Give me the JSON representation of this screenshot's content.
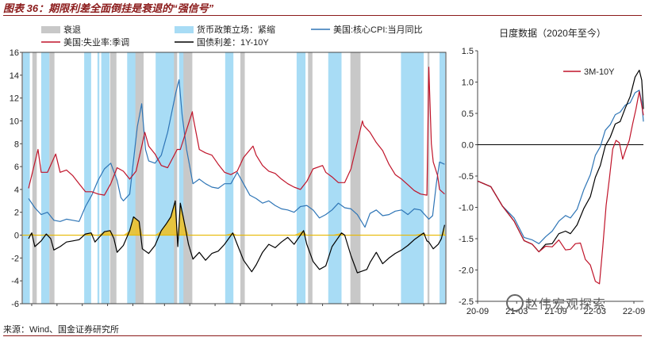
{
  "header": {
    "title": "图表 36：期限利差全面倒挂是衰退的“强信号”",
    "source": "来源：Wind、国金证券研究所",
    "watermark": "赵伟宏观探索",
    "watermark_icon": "wechat-icon"
  },
  "colors": {
    "recession": "#c8c8c8",
    "tightening": "#a8dcf5",
    "core_cpi": "#2e75b6",
    "unemployment": "#c0142a",
    "spread": "#000000",
    "zero_line": "#e6b800",
    "positive_area": "#f0c020"
  },
  "chart_data": [
    {
      "type": "line",
      "legend_position": "top",
      "title": "",
      "xlabel": "",
      "ylabel": "",
      "ylim": [
        -6,
        16
      ],
      "xlim": [
        1956.0,
        2023.0
      ],
      "x_ticks": [
        "1957",
        "1961",
        "1965",
        "1969",
        "1973",
        "1978",
        "1982",
        "1986",
        "1990",
        "1995",
        "1999",
        "2003",
        "2007",
        "2011",
        "2015",
        "2019"
      ],
      "y_ticks": [
        "16",
        "14",
        "12",
        "10",
        "8",
        "6",
        "4",
        "2",
        "0",
        "-2",
        "-4",
        "-6"
      ],
      "legend": {
        "recession": "衰退",
        "tightening": "货币政策立场：紧缩",
        "core_cpi": "美国:核心CPI:当月同比",
        "unemployment": "美国:失业率:季调",
        "spread": "国债利差：1Y-10Y"
      },
      "recession_periods": [
        [
          1957.6,
          1958.3
        ],
        [
          1960.3,
          1961.1
        ],
        [
          1969.9,
          1970.9
        ],
        [
          1973.9,
          1975.2
        ],
        [
          1980.0,
          1980.5
        ],
        [
          1981.5,
          1982.9
        ],
        [
          1990.5,
          1991.2
        ],
        [
          2001.2,
          2001.9
        ],
        [
          2007.9,
          2009.5
        ],
        [
          2020.1,
          2020.4
        ]
      ],
      "tightening_periods": [
        [
          1956.1,
          1957.2
        ],
        [
          1959.0,
          1960.3
        ],
        [
          1965.8,
          1966.9
        ],
        [
          1967.9,
          1968.2
        ],
        [
          1968.5,
          1969.8
        ],
        [
          1970.1,
          1970.3
        ],
        [
          1972.6,
          1974.6
        ],
        [
          1977.1,
          1980.5
        ],
        [
          1980.8,
          1981.9
        ],
        [
          1988.1,
          1989.4
        ],
        [
          1999.4,
          2000.8
        ],
        [
          2004.4,
          2006.5
        ],
        [
          2015.9,
          2019.5
        ],
        [
          2022.0,
          2022.9
        ]
      ],
      "series": [
        {
          "name": "美国:核心CPI:当月同比",
          "x": [
            1957,
            1958,
            1959,
            1960,
            1961,
            1962,
            1963,
            1964,
            1965,
            1966,
            1967,
            1968,
            1969,
            1970,
            1971,
            1971.6,
            1972,
            1973,
            1974.2,
            1974.9,
            1975.5,
            1976,
            1977,
            1978,
            1979,
            1980.3,
            1980.8,
            1981.3,
            1982,
            1983,
            1984,
            1985,
            1986,
            1987,
            1988,
            1989,
            1990,
            1991,
            1992,
            1993,
            1994,
            1995,
            1996,
            1997,
            1998,
            1999,
            2000,
            2001,
            2002,
            2003,
            2004,
            2005,
            2006,
            2007,
            2008,
            2009,
            2010.2,
            2011,
            2012,
            2013,
            2014,
            2015,
            2016,
            2017,
            2018,
            2019,
            2020.3,
            2020.9,
            2021.5,
            2022,
            2022.8
          ],
          "values": [
            3.2,
            2.4,
            1.8,
            2.0,
            1.3,
            1.2,
            1.4,
            1.3,
            1.2,
            2.5,
            3.5,
            4.8,
            5.8,
            6.3,
            4.8,
            3.3,
            3.0,
            3.6,
            9.5,
            11.5,
            7.5,
            6.5,
            6.3,
            7.0,
            9.0,
            12.5,
            13.6,
            10.5,
            7.5,
            4.5,
            4.9,
            4.5,
            4.2,
            4.1,
            4.5,
            4.5,
            5.5,
            4.5,
            3.5,
            3.2,
            2.8,
            3.0,
            2.6,
            2.3,
            2.2,
            2.0,
            2.5,
            2.6,
            2.2,
            1.5,
            1.8,
            2.2,
            2.8,
            2.4,
            2.3,
            1.8,
            0.7,
            1.9,
            2.2,
            1.7,
            1.8,
            2.1,
            2.2,
            1.8,
            2.3,
            2.2,
            1.4,
            1.7,
            4.5,
            6.4,
            6.2
          ]
        },
        {
          "name": "美国:失业率:季调",
          "x": [
            1957,
            1958.5,
            1959,
            1960,
            1961.3,
            1962,
            1963,
            1964,
            1965,
            1966,
            1967,
            1968,
            1969,
            1970,
            1971,
            1972,
            1973,
            1974,
            1975.4,
            1976,
            1977,
            1978,
            1979,
            1980.5,
            1981,
            1982.9,
            1983,
            1984,
            1985,
            1986,
            1987,
            1988,
            1989,
            1990,
            1991,
            1992.5,
            1993,
            1994,
            1995,
            1996,
            1997,
            1998,
            1999,
            2000,
            2001,
            2002,
            2003.5,
            2004,
            2005,
            2006,
            2007,
            2008,
            2009.8,
            2010,
            2011,
            2012,
            2013,
            2014,
            2015,
            2016,
            2017,
            2018,
            2019,
            2020.0,
            2020.3,
            2020.7,
            2021,
            2021.7,
            2022,
            2022.8
          ],
          "values": [
            4.1,
            7.5,
            5.5,
            5.5,
            7.1,
            5.5,
            5.7,
            5.2,
            4.5,
            3.8,
            3.8,
            3.6,
            3.5,
            4.5,
            5.9,
            5.6,
            4.9,
            5.6,
            9.0,
            7.8,
            7.1,
            6.1,
            5.9,
            7.5,
            7.5,
            10.8,
            10.4,
            7.5,
            7.2,
            7.0,
            6.2,
            5.5,
            5.3,
            5.6,
            6.8,
            7.8,
            7.0,
            6.1,
            5.6,
            5.4,
            4.9,
            4.5,
            4.2,
            4.0,
            4.7,
            5.8,
            6.1,
            5.5,
            5.1,
            4.6,
            4.6,
            5.8,
            10.0,
            9.6,
            9.0,
            8.1,
            7.4,
            6.2,
            5.3,
            4.9,
            4.4,
            3.9,
            3.6,
            3.5,
            14.7,
            8.0,
            6.4,
            5.2,
            4.0,
            3.6
          ]
        },
        {
          "name": "国债利差：1Y-10Y",
          "x": [
            1957,
            1957.5,
            1958,
            1959,
            1959.8,
            1960.5,
            1961,
            1962,
            1963,
            1964,
            1965,
            1966,
            1966.9,
            1967.5,
            1968,
            1969,
            1969.9,
            1970.5,
            1971,
            1972,
            1973,
            1973.6,
            1974.5,
            1975,
            1976,
            1977,
            1978,
            1978.8,
            1979.5,
            1980.2,
            1980.6,
            1981.0,
            1981.5,
            1982.3,
            1983,
            1984,
            1985,
            1986,
            1987,
            1988,
            1989.3,
            1990,
            1991,
            1992.3,
            1993,
            1994,
            1995,
            1996,
            1997,
            1998,
            1999,
            2000.5,
            2001,
            2002,
            2003,
            2004,
            2005,
            2006.5,
            2007,
            2008,
            2009,
            2010.5,
            2011,
            2012,
            2013,
            2014,
            2015,
            2016,
            2017,
            2018,
            2019.5,
            2020,
            2020.3,
            2021,
            2021.8,
            2022.3,
            2022.8
          ],
          "values": [
            -0.3,
            0.2,
            -1.0,
            -0.5,
            0.1,
            -0.3,
            -1.3,
            -1.0,
            -0.6,
            -0.5,
            -0.4,
            0.1,
            0.2,
            -0.6,
            -0.3,
            0.3,
            0.4,
            -0.3,
            -1.5,
            -0.9,
            0.4,
            1.6,
            1.2,
            -1.2,
            -1.6,
            -0.9,
            0.4,
            1.0,
            1.6,
            3.0,
            -1.0,
            2.8,
            1.5,
            -0.8,
            -2.1,
            -1.5,
            -2.2,
            -1.6,
            -1.4,
            -0.8,
            0.2,
            -0.8,
            -2.2,
            -3.2,
            -2.6,
            -1.5,
            -0.8,
            -1.1,
            -0.6,
            -0.2,
            -0.8,
            0.4,
            -0.8,
            -2.3,
            -3.0,
            -2.7,
            -1.0,
            0.2,
            0.0,
            -1.8,
            -3.3,
            -3.0,
            -2.4,
            -1.5,
            -2.5,
            -2.0,
            -1.6,
            -1.3,
            -0.9,
            -0.4,
            0.2,
            -0.5,
            -0.6,
            -1.2,
            -0.8,
            -0.3,
            0.9
          ]
        }
      ]
    },
    {
      "type": "line",
      "title": "日度数据（2020年至今）",
      "xlabel": "",
      "ylabel": "",
      "ylim": [
        -2.5,
        1.5
      ],
      "legend_position": "top-right",
      "x_ticks": [
        "20-09",
        "21-03",
        "21-09",
        "22-03",
        "22-09"
      ],
      "y_ticks": [
        "1.5",
        "1.0",
        "0.5",
        "0.0",
        "-0.5",
        "-1.0",
        "-1.5",
        "-2.0",
        "-2.5"
      ],
      "legend": {
        "red_series": "3M-10Y"
      },
      "series": [
        {
          "name": "3M-10Y",
          "x": [
            0,
            0.08,
            0.15,
            0.22,
            0.28,
            0.33,
            0.37,
            0.41,
            0.45,
            0.49,
            0.53,
            0.56,
            0.59,
            0.62,
            0.65,
            0.68,
            0.71,
            0.735,
            0.755,
            0.775,
            0.795,
            0.815,
            0.835,
            0.855,
            0.875,
            0.895,
            0.915,
            0.935,
            0.955,
            0.975,
            1.0
          ],
          "values": [
            -0.55,
            -0.7,
            -0.95,
            -1.25,
            -1.5,
            -1.62,
            -1.68,
            -1.65,
            -1.6,
            -1.55,
            -1.65,
            -1.7,
            -1.55,
            -1.6,
            -1.8,
            -1.95,
            -2.15,
            -2.25,
            -1.6,
            -1.0,
            -0.5,
            -0.1,
            0.1,
            0.0,
            -0.2,
            -0.1,
            0.1,
            0.3,
            0.6,
            0.82,
            0.5
          ]
        },
        {
          "name": "black",
          "x": [
            0,
            0.08,
            0.15,
            0.22,
            0.28,
            0.33,
            0.37,
            0.41,
            0.45,
            0.49,
            0.53,
            0.56,
            0.6,
            0.64,
            0.68,
            0.71,
            0.74,
            0.77,
            0.8,
            0.83,
            0.86,
            0.89,
            0.92,
            0.95,
            0.975,
            0.99,
            1.0
          ],
          "values": [
            -0.55,
            -0.7,
            -0.95,
            -1.25,
            -1.5,
            -1.62,
            -1.68,
            -1.62,
            -1.55,
            -1.45,
            -1.35,
            -1.45,
            -1.25,
            -1.05,
            -0.8,
            -0.55,
            -0.3,
            -0.05,
            0.15,
            0.3,
            0.4,
            0.55,
            0.8,
            1.05,
            1.22,
            1.0,
            0.6
          ]
        },
        {
          "name": "blue",
          "x": [
            0,
            0.08,
            0.15,
            0.22,
            0.28,
            0.33,
            0.37,
            0.41,
            0.45,
            0.49,
            0.53,
            0.56,
            0.6,
            0.64,
            0.68,
            0.71,
            0.74,
            0.77,
            0.8,
            0.83,
            0.86,
            0.89,
            0.92,
            0.95,
            0.975,
            0.99,
            1.0
          ],
          "values": [
            -0.55,
            -0.7,
            -0.95,
            -1.2,
            -1.45,
            -1.55,
            -1.55,
            -1.5,
            -1.35,
            -1.25,
            -1.1,
            -1.2,
            -1.0,
            -0.75,
            -0.45,
            -0.2,
            0.0,
            0.2,
            0.35,
            0.45,
            0.55,
            0.6,
            0.7,
            0.8,
            0.9,
            0.65,
            0.4
          ]
        }
      ]
    }
  ]
}
